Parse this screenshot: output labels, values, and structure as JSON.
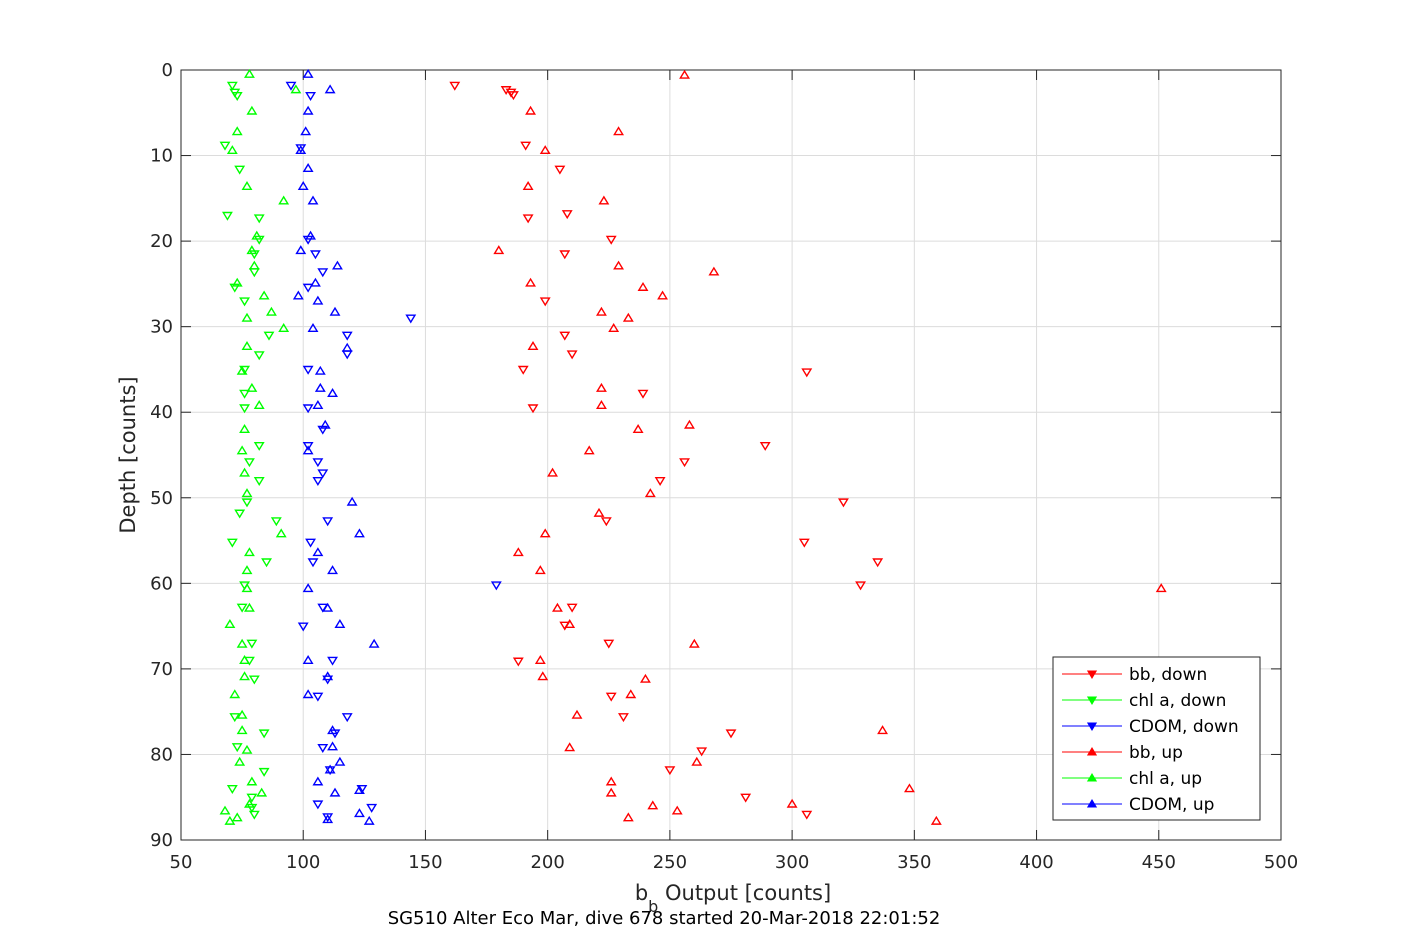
{
  "chart_data": {
    "type": "scatter",
    "title": "",
    "xlabel_main": "b",
    "xlabel_sub": "b",
    "xlabel_rest": " Output [counts]",
    "ylabel": "Depth [counts]",
    "caption": "SG510 Alter Eco Mar, dive 678 started 20-Mar-2018 22:01:52",
    "xlim": [
      50,
      500
    ],
    "ylim": [
      0,
      90
    ],
    "y_reversed": true,
    "grid": true,
    "legend_position": "bottom-right",
    "xticks": [
      "50",
      "100",
      "150",
      "200",
      "250",
      "300",
      "350",
      "400",
      "450",
      "500"
    ],
    "yticks": [
      "0",
      "10",
      "20",
      "30",
      "40",
      "50",
      "60",
      "70",
      "80",
      "90"
    ],
    "xtick_values": [
      50,
      100,
      150,
      200,
      250,
      300,
      350,
      400,
      450,
      500
    ],
    "ytick_values": [
      0,
      10,
      20,
      30,
      40,
      50,
      60,
      70,
      80,
      90
    ],
    "series": [
      {
        "name": "bb, down",
        "color": "#ff0000",
        "marker": "triangle-down",
        "points": [
          [
            162,
            1.8
          ],
          [
            183,
            2.3
          ],
          [
            185,
            2.6
          ],
          [
            186,
            2.9
          ],
          [
            191,
            8.8
          ],
          [
            205,
            11.6
          ],
          [
            192,
            17.3
          ],
          [
            208,
            16.8
          ],
          [
            226,
            19.8
          ],
          [
            207,
            21.5
          ],
          [
            199,
            27
          ],
          [
            207,
            31
          ],
          [
            210,
            33.2
          ],
          [
            190,
            35
          ],
          [
            306,
            35.3
          ],
          [
            239,
            37.8
          ],
          [
            194,
            39.5
          ],
          [
            289,
            43.9
          ],
          [
            256,
            45.8
          ],
          [
            246,
            48
          ],
          [
            321,
            50.5
          ],
          [
            224,
            52.7
          ],
          [
            305,
            55.2
          ],
          [
            335,
            57.5
          ],
          [
            328,
            60.2
          ],
          [
            210,
            62.8
          ],
          [
            207,
            64.9
          ],
          [
            225,
            67
          ],
          [
            188,
            69.1
          ],
          [
            226,
            73.2
          ],
          [
            231,
            75.6
          ],
          [
            275,
            77.5
          ],
          [
            263,
            79.6
          ],
          [
            250,
            81.8
          ],
          [
            281,
            85
          ],
          [
            306,
            87
          ]
        ]
      },
      {
        "name": "chl a, down",
        "color": "#00ff00",
        "marker": "triangle-down",
        "points": [
          [
            71,
            1.8
          ],
          [
            72,
            2.6
          ],
          [
            73,
            3
          ],
          [
            68,
            8.8
          ],
          [
            74,
            11.6
          ],
          [
            69,
            17
          ],
          [
            82,
            17.3
          ],
          [
            82,
            19.8
          ],
          [
            80,
            21.5
          ],
          [
            80,
            23.6
          ],
          [
            72,
            25.4
          ],
          [
            76,
            27
          ],
          [
            86,
            31
          ],
          [
            82,
            33.3
          ],
          [
            76,
            35
          ],
          [
            76,
            37.8
          ],
          [
            76,
            39.5
          ],
          [
            82,
            43.9
          ],
          [
            78,
            45.8
          ],
          [
            82,
            48
          ],
          [
            77,
            50.5
          ],
          [
            74,
            51.8
          ],
          [
            89,
            52.7
          ],
          [
            71,
            55.2
          ],
          [
            85,
            57.5
          ],
          [
            76,
            60.2
          ],
          [
            75,
            62.8
          ],
          [
            79,
            67
          ],
          [
            78,
            69
          ],
          [
            80,
            71.2
          ],
          [
            72,
            75.6
          ],
          [
            84,
            77.5
          ],
          [
            73,
            79.1
          ],
          [
            84,
            82
          ],
          [
            71,
            84
          ],
          [
            79,
            85
          ],
          [
            79,
            86.2
          ],
          [
            80,
            87
          ]
        ]
      },
      {
        "name": "CDOM, down",
        "color": "#0000ff",
        "marker": "triangle-down",
        "points": [
          [
            95,
            1.8
          ],
          [
            103,
            3
          ],
          [
            99,
            9.1
          ],
          [
            102,
            19.8
          ],
          [
            105,
            21.5
          ],
          [
            108,
            23.6
          ],
          [
            102,
            25.4
          ],
          [
            144,
            29
          ],
          [
            118,
            31
          ],
          [
            118,
            33.2
          ],
          [
            102,
            35
          ],
          [
            102,
            39.5
          ],
          [
            108,
            42
          ],
          [
            102,
            43.9
          ],
          [
            106,
            45.8
          ],
          [
            108,
            47.1
          ],
          [
            106,
            48
          ],
          [
            110,
            52.7
          ],
          [
            103,
            55.2
          ],
          [
            104,
            57.5
          ],
          [
            179,
            60.2
          ],
          [
            108,
            62.8
          ],
          [
            100,
            65
          ],
          [
            112,
            69
          ],
          [
            110,
            71.2
          ],
          [
            106,
            73.2
          ],
          [
            118,
            75.6
          ],
          [
            113,
            77.5
          ],
          [
            108,
            79.2
          ],
          [
            111,
            81.8
          ],
          [
            124,
            84
          ],
          [
            106,
            85.8
          ],
          [
            128,
            86.2
          ],
          [
            110,
            87.3
          ]
        ]
      },
      {
        "name": "bb, up",
        "color": "#ff0000",
        "marker": "triangle-up",
        "points": [
          [
            256,
            0.6
          ],
          [
            193,
            4.8
          ],
          [
            229,
            7.2
          ],
          [
            199,
            9.4
          ],
          [
            192,
            13.6
          ],
          [
            223,
            15.3
          ],
          [
            180,
            21.1
          ],
          [
            229,
            22.9
          ],
          [
            268,
            23.6
          ],
          [
            193,
            24.9
          ],
          [
            239,
            25.4
          ],
          [
            247,
            26.4
          ],
          [
            222,
            28.3
          ],
          [
            233,
            29
          ],
          [
            227,
            30.2
          ],
          [
            194,
            32.3
          ],
          [
            222,
            37.2
          ],
          [
            222,
            39.2
          ],
          [
            258,
            41.5
          ],
          [
            237,
            42
          ],
          [
            217,
            44.5
          ],
          [
            202,
            47.1
          ],
          [
            242,
            49.5
          ],
          [
            221,
            51.8
          ],
          [
            199,
            54.2
          ],
          [
            188,
            56.4
          ],
          [
            197,
            58.5
          ],
          [
            451,
            60.6
          ],
          [
            204,
            62.9
          ],
          [
            209,
            64.8
          ],
          [
            260,
            67.1
          ],
          [
            197,
            69
          ],
          [
            198,
            70.9
          ],
          [
            240,
            71.2
          ],
          [
            234,
            73
          ],
          [
            212,
            75.4
          ],
          [
            337,
            77.2
          ],
          [
            209,
            79.2
          ],
          [
            261,
            80.9
          ],
          [
            226,
            83.2
          ],
          [
            348,
            84
          ],
          [
            226,
            84.5
          ],
          [
            243,
            86
          ],
          [
            253,
            86.6
          ],
          [
            300,
            85.8
          ],
          [
            233,
            87.4
          ],
          [
            359,
            87.8
          ]
        ]
      },
      {
        "name": "chl a, up",
        "color": "#00ff00",
        "marker": "triangle-up",
        "points": [
          [
            78,
            0.5
          ],
          [
            97,
            2.3
          ],
          [
            79,
            4.8
          ],
          [
            73,
            7.2
          ],
          [
            71,
            9.4
          ],
          [
            77,
            13.6
          ],
          [
            92,
            15.3
          ],
          [
            81,
            19.4
          ],
          [
            79,
            21.1
          ],
          [
            80,
            22.9
          ],
          [
            73,
            24.9
          ],
          [
            84,
            26.4
          ],
          [
            87,
            28.3
          ],
          [
            77,
            29
          ],
          [
            92,
            30.2
          ],
          [
            77,
            32.3
          ],
          [
            75,
            35.2
          ],
          [
            79,
            37.2
          ],
          [
            82,
            39.2
          ],
          [
            76,
            42
          ],
          [
            75,
            44.5
          ],
          [
            76,
            47.1
          ],
          [
            77,
            49.5
          ],
          [
            91,
            54.2
          ],
          [
            78,
            56.4
          ],
          [
            77,
            58.5
          ],
          [
            77,
            60.6
          ],
          [
            78,
            62.9
          ],
          [
            70,
            64.8
          ],
          [
            75,
            67.1
          ],
          [
            76,
            69
          ],
          [
            76,
            70.9
          ],
          [
            72,
            73
          ],
          [
            75,
            75.4
          ],
          [
            75,
            77.2
          ],
          [
            77,
            79.5
          ],
          [
            74,
            80.9
          ],
          [
            79,
            83.2
          ],
          [
            83,
            84.5
          ],
          [
            78,
            85.8
          ],
          [
            68,
            86.6
          ],
          [
            73,
            87.4
          ],
          [
            70,
            87.8
          ]
        ]
      },
      {
        "name": "CDOM, up",
        "color": "#0000ff",
        "marker": "triangle-up",
        "points": [
          [
            102,
            0.5
          ],
          [
            111,
            2.3
          ],
          [
            102,
            4.8
          ],
          [
            101,
            7.2
          ],
          [
            99,
            9.4
          ],
          [
            102,
            11.5
          ],
          [
            100,
            13.6
          ],
          [
            104,
            15.3
          ],
          [
            103,
            19.4
          ],
          [
            99,
            21.1
          ],
          [
            114,
            22.9
          ],
          [
            105,
            24.9
          ],
          [
            98,
            26.4
          ],
          [
            106,
            27
          ],
          [
            113,
            28.3
          ],
          [
            104,
            30.2
          ],
          [
            118,
            32.5
          ],
          [
            107,
            35.2
          ],
          [
            107,
            37.2
          ],
          [
            112,
            37.8
          ],
          [
            106,
            39.2
          ],
          [
            109,
            41.5
          ],
          [
            102,
            44.5
          ],
          [
            120,
            50.5
          ],
          [
            123,
            54.2
          ],
          [
            106,
            56.4
          ],
          [
            112,
            58.5
          ],
          [
            102,
            60.6
          ],
          [
            110,
            62.9
          ],
          [
            115,
            64.8
          ],
          [
            129,
            67.1
          ],
          [
            102,
            69
          ],
          [
            110,
            70.9
          ],
          [
            102,
            73
          ],
          [
            112,
            77.2
          ],
          [
            112,
            79.1
          ],
          [
            115,
            80.9
          ],
          [
            111,
            81.8
          ],
          [
            106,
            83.2
          ],
          [
            113,
            84.5
          ],
          [
            123,
            84.2
          ],
          [
            123,
            86.9
          ],
          [
            110,
            87.6
          ],
          [
            127,
            87.8
          ]
        ]
      }
    ]
  }
}
